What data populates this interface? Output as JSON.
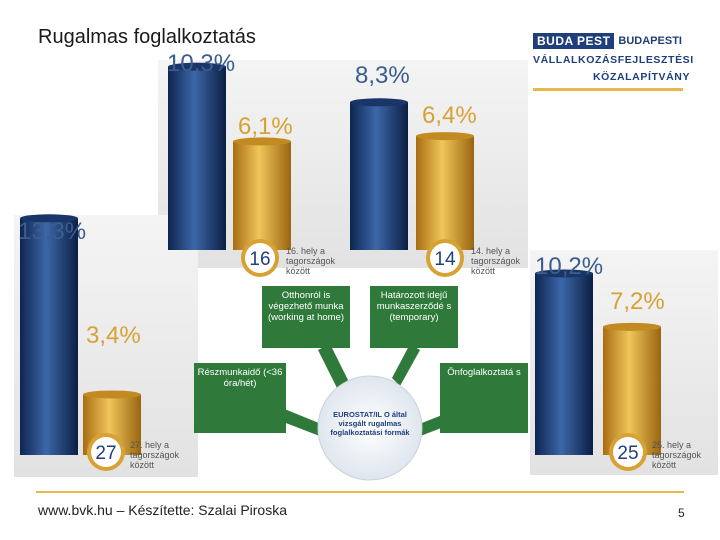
{
  "title": "Rugalmas foglalkoztatás",
  "logo": {
    "badge": "BUDA PEST",
    "line1": "BUDAPESTI",
    "line2": "VÁLLALKOZÁSFEJLESZTÉSI",
    "line3": "KÖZALAPÍTVÁNY"
  },
  "chart_data": {
    "type": "bar",
    "series": [
      {
        "color": "#1f3f7a"
      },
      {
        "color": "#d7a233"
      }
    ],
    "groups": [
      {
        "label": "Otthonról is végezhető munka (working at home)",
        "values": [
          10.3,
          6.1
        ],
        "labels": [
          "10,3%",
          "6,1%"
        ],
        "rank": "16",
        "rank_text": "16. hely a tagországok között"
      },
      {
        "label": "Határozott idejű munkaszerződé s (temporary)",
        "values": [
          8.3,
          6.4
        ],
        "labels": [
          "8,3%",
          "6,4%"
        ],
        "rank": "14",
        "rank_text": "14. hely a tagországok között"
      },
      {
        "label": "Részmunkaidő (<36 óra/hét)",
        "values": [
          13.3,
          3.4
        ],
        "labels": [
          "13,3%",
          "3,4%"
        ],
        "rank": "27",
        "rank_text": "27. hely a tagországok között"
      },
      {
        "label": "Önfoglalkoztatá s",
        "values": [
          10.2,
          7.2
        ],
        "labels": [
          "10,2%",
          "7,2%"
        ],
        "rank": "25",
        "rank_text": "25. hely a tagországok között"
      }
    ],
    "center_label": "EUROSTAT/IL O által vizsgált rugalmas foglalkoztatási formák"
  },
  "footer": "www.bvk.hu – Készítette: Szalai Piroska",
  "page_number": "5"
}
